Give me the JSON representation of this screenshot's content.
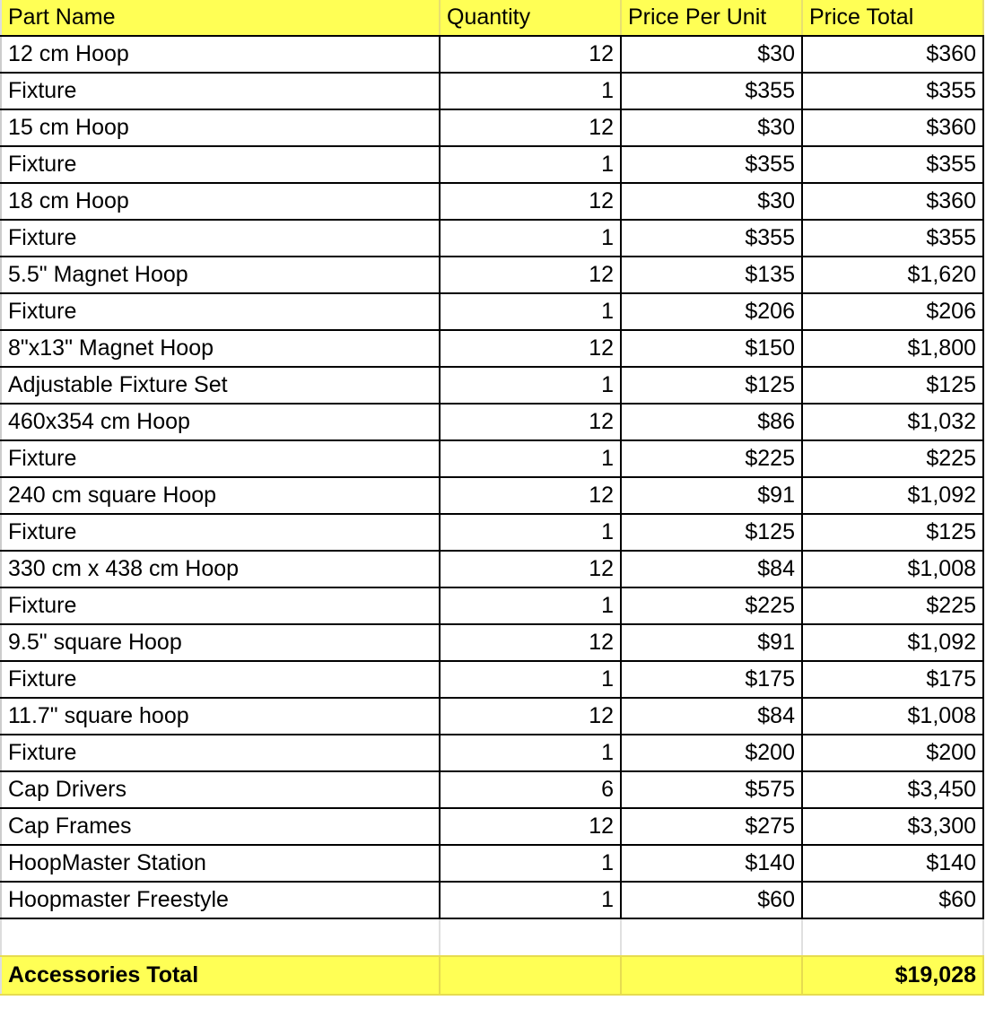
{
  "colors": {
    "header_bg": "#ffff55",
    "total_bg": "#ffff55"
  },
  "headers": [
    "Part Name",
    "Quantity",
    "Price Per Unit",
    "Price Total"
  ],
  "rows": [
    [
      "12 cm Hoop",
      "12",
      "$30",
      "$360"
    ],
    [
      "Fixture",
      "1",
      "$355",
      "$355"
    ],
    [
      "15 cm Hoop",
      "12",
      "$30",
      "$360"
    ],
    [
      "Fixture",
      "1",
      "$355",
      "$355"
    ],
    [
      "18 cm Hoop",
      "12",
      "$30",
      "$360"
    ],
    [
      "Fixture",
      "1",
      "$355",
      "$355"
    ],
    [
      "5.5\" Magnet Hoop",
      "12",
      "$135",
      "$1,620"
    ],
    [
      "Fixture",
      "1",
      "$206",
      "$206"
    ],
    [
      "8\"x13\" Magnet Hoop",
      "12",
      "$150",
      "$1,800"
    ],
    [
      "Adjustable Fixture Set",
      "1",
      "$125",
      "$125"
    ],
    [
      "460x354 cm Hoop",
      "12",
      "$86",
      "$1,032"
    ],
    [
      "Fixture",
      "1",
      "$225",
      "$225"
    ],
    [
      "240 cm square Hoop",
      "12",
      "$91",
      "$1,092"
    ],
    [
      "Fixture",
      "1",
      "$125",
      "$125"
    ],
    [
      "330 cm x 438 cm Hoop",
      "12",
      "$84",
      "$1,008"
    ],
    [
      "Fixture",
      "1",
      "$225",
      "$225"
    ],
    [
      "9.5\" square Hoop",
      "12",
      "$91",
      "$1,092"
    ],
    [
      "Fixture",
      "1",
      "$175",
      "$175"
    ],
    [
      "11.7\" square hoop",
      "12",
      "$84",
      "$1,008"
    ],
    [
      "Fixture",
      "1",
      "$200",
      "$200"
    ],
    [
      "Cap Drivers",
      "6",
      "$575",
      "$3,450"
    ],
    [
      "Cap Frames",
      "12",
      "$275",
      "$3,300"
    ],
    [
      "HoopMaster Station",
      "1",
      "$140",
      "$140"
    ],
    [
      "Hoopmaster Freestyle",
      "1",
      "$60",
      "$60"
    ]
  ],
  "total": {
    "label": "Accessories Total",
    "value": "$19,028"
  }
}
